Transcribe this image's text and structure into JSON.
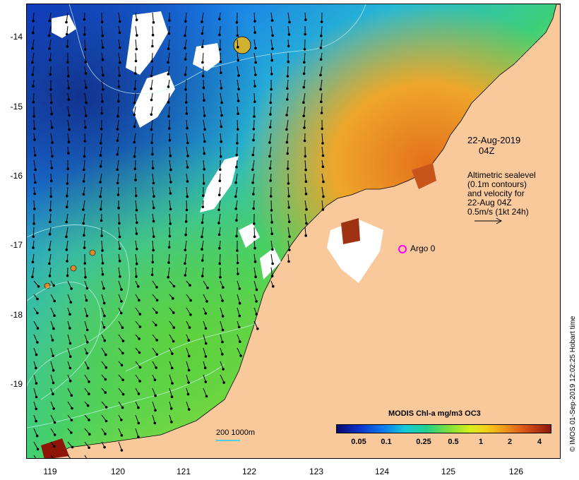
{
  "map": {
    "date_label": "22-Aug-2019",
    "time_label": "04Z",
    "legend_lines": [
      "Altimetric sealevel",
      "(0.1m contours)",
      "and velocity for",
      "22-Aug 04Z",
      "0.5m/s (1kt 24h)"
    ],
    "argo_label": "Argo 0",
    "scale_label": "200  1000m",
    "colorbar_title": "MODIS Chl-a mg/m3 OC3",
    "colorbar_ticks": [
      "0.05",
      "0.1",
      "0.25",
      "0.5",
      "1",
      "2",
      "4"
    ],
    "lat_ticks": [
      "-14",
      "-15",
      "-16",
      "-17",
      "-18",
      "-19"
    ],
    "lon_ticks": [
      "119",
      "120",
      "121",
      "122",
      "123",
      "124",
      "125",
      "126"
    ],
    "credit": "© IMOS 01-Sep-2019 12:02:25 Hobart time",
    "colors": {
      "land": "#f9c99c",
      "low_chl": "#0a2fc8",
      "high_chl": "#8e1508",
      "argo": "#ff00ff",
      "bathymetry": "#4fd0d8"
    }
  }
}
